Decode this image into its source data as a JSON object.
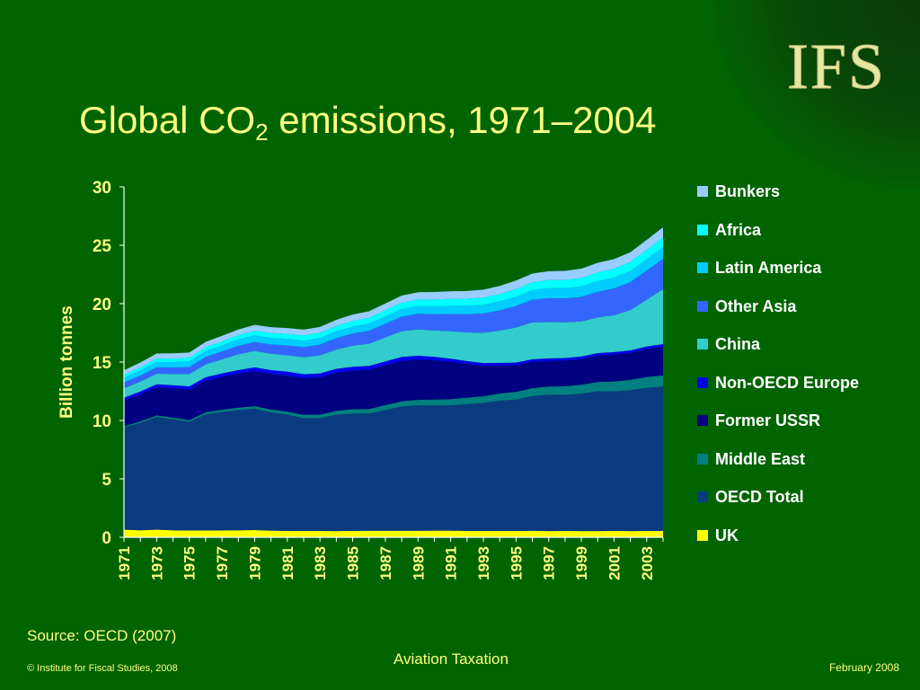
{
  "slide": {
    "logo": "IFS",
    "title_main": "Global CO",
    "title_sub": "2",
    "title_rest": " emissions, 1971–2004",
    "source": "Source: OECD (2007)",
    "footer_center": "Aviation Taxation",
    "footer_left": "© Institute for Fiscal Studies, 2008",
    "footer_right": "February 2008"
  },
  "chart_data": {
    "type": "area",
    "stacked": true,
    "title": "Global CO2 emissions, 1971–2004",
    "xlabel": "",
    "ylabel": "Billion tonnes",
    "ylim": [
      0,
      30
    ],
    "yticks": [
      0,
      5,
      10,
      15,
      20,
      25,
      30
    ],
    "x": [
      1971,
      1972,
      1973,
      1974,
      1975,
      1976,
      1977,
      1978,
      1979,
      1980,
      1981,
      1982,
      1983,
      1984,
      1985,
      1986,
      1987,
      1988,
      1989,
      1990,
      1991,
      1992,
      1993,
      1994,
      1995,
      1996,
      1997,
      1998,
      1999,
      2000,
      2001,
      2002,
      2003,
      2004
    ],
    "xtick_labels": [
      "1971",
      "1973",
      "1975",
      "1977",
      "1979",
      "1981",
      "1983",
      "1985",
      "1987",
      "1989",
      "1991",
      "1993",
      "1995",
      "1997",
      "1999",
      "2001",
      "2003"
    ],
    "grid": false,
    "legend_position": "right",
    "series": [
      {
        "name": "UK",
        "color": "#ffff00",
        "values": [
          0.65,
          0.6,
          0.65,
          0.6,
          0.58,
          0.58,
          0.59,
          0.6,
          0.62,
          0.57,
          0.55,
          0.54,
          0.54,
          0.53,
          0.55,
          0.56,
          0.56,
          0.56,
          0.56,
          0.57,
          0.57,
          0.55,
          0.55,
          0.54,
          0.54,
          0.56,
          0.53,
          0.54,
          0.53,
          0.53,
          0.55,
          0.53,
          0.54,
          0.55
        ]
      },
      {
        "name": "OECD Total",
        "color": "#0a3a80",
        "values": [
          8.75,
          9.2,
          9.65,
          9.5,
          9.3,
          9.95,
          10.15,
          10.3,
          10.38,
          10.13,
          9.95,
          9.66,
          9.66,
          9.97,
          10.05,
          10.04,
          10.34,
          10.64,
          10.74,
          10.73,
          10.73,
          10.85,
          10.95,
          11.16,
          11.26,
          11.54,
          11.67,
          11.66,
          11.77,
          11.97,
          11.95,
          12.07,
          12.26,
          12.35
        ]
      },
      {
        "name": "Middle East",
        "color": "#008080",
        "values": [
          0.1,
          0.12,
          0.13,
          0.14,
          0.15,
          0.17,
          0.18,
          0.2,
          0.22,
          0.23,
          0.25,
          0.28,
          0.3,
          0.33,
          0.36,
          0.38,
          0.41,
          0.44,
          0.46,
          0.49,
          0.52,
          0.55,
          0.58,
          0.61,
          0.64,
          0.67,
          0.7,
          0.73,
          0.76,
          0.8,
          0.84,
          0.88,
          0.92,
          0.96
        ]
      },
      {
        "name": "Former USSR",
        "color": "#000080",
        "values": [
          2.2,
          2.3,
          2.4,
          2.5,
          2.6,
          2.7,
          2.8,
          2.9,
          3.0,
          3.05,
          3.1,
          3.15,
          3.2,
          3.25,
          3.3,
          3.35,
          3.4,
          3.45,
          3.45,
          3.35,
          3.2,
          2.9,
          2.6,
          2.4,
          2.3,
          2.25,
          2.2,
          2.2,
          2.2,
          2.25,
          2.3,
          2.3,
          2.4,
          2.45
        ]
      },
      {
        "name": "Non-OECD Europe",
        "color": "#0000ee",
        "values": [
          0.25,
          0.26,
          0.27,
          0.28,
          0.29,
          0.3,
          0.31,
          0.32,
          0.33,
          0.33,
          0.33,
          0.33,
          0.33,
          0.34,
          0.34,
          0.34,
          0.35,
          0.35,
          0.34,
          0.31,
          0.27,
          0.24,
          0.23,
          0.22,
          0.22,
          0.22,
          0.22,
          0.22,
          0.22,
          0.22,
          0.22,
          0.22,
          0.22,
          0.23
        ]
      },
      {
        "name": "China",
        "color": "#33cccc",
        "values": [
          0.8,
          0.85,
          0.9,
          0.95,
          1.05,
          1.1,
          1.2,
          1.35,
          1.4,
          1.4,
          1.4,
          1.45,
          1.55,
          1.65,
          1.8,
          1.9,
          2.05,
          2.2,
          2.25,
          2.25,
          2.35,
          2.45,
          2.6,
          2.75,
          3.0,
          3.15,
          3.1,
          3.05,
          3.0,
          3.05,
          3.15,
          3.45,
          4.0,
          4.7
        ]
      },
      {
        "name": "Other Asia",
        "color": "#3366ff",
        "values": [
          0.5,
          0.52,
          0.55,
          0.57,
          0.6,
          0.64,
          0.68,
          0.72,
          0.77,
          0.8,
          0.84,
          0.87,
          0.92,
          0.98,
          1.04,
          1.1,
          1.17,
          1.25,
          1.33,
          1.4,
          1.48,
          1.56,
          1.65,
          1.74,
          1.85,
          1.95,
          2.05,
          2.05,
          2.1,
          2.2,
          2.3,
          2.4,
          2.5,
          2.6
        ]
      },
      {
        "name": "Latin America",
        "color": "#00ccff",
        "values": [
          0.4,
          0.42,
          0.45,
          0.46,
          0.48,
          0.5,
          0.52,
          0.55,
          0.57,
          0.58,
          0.57,
          0.56,
          0.56,
          0.58,
          0.6,
          0.62,
          0.64,
          0.66,
          0.67,
          0.68,
          0.7,
          0.72,
          0.74,
          0.77,
          0.8,
          0.83,
          0.86,
          0.88,
          0.9,
          0.92,
          0.93,
          0.95,
          0.97,
          1.0
        ]
      },
      {
        "name": "Africa",
        "color": "#00ffff",
        "values": [
          0.25,
          0.27,
          0.29,
          0.3,
          0.32,
          0.33,
          0.35,
          0.37,
          0.39,
          0.4,
          0.42,
          0.44,
          0.45,
          0.47,
          0.49,
          0.5,
          0.52,
          0.54,
          0.56,
          0.58,
          0.59,
          0.6,
          0.62,
          0.63,
          0.65,
          0.67,
          0.69,
          0.7,
          0.72,
          0.74,
          0.76,
          0.78,
          0.81,
          0.84
        ]
      },
      {
        "name": "Bunkers",
        "color": "#99ccff",
        "values": [
          0.4,
          0.42,
          0.44,
          0.45,
          0.45,
          0.46,
          0.47,
          0.48,
          0.5,
          0.5,
          0.5,
          0.5,
          0.5,
          0.52,
          0.54,
          0.56,
          0.58,
          0.6,
          0.62,
          0.64,
          0.65,
          0.67,
          0.68,
          0.7,
          0.72,
          0.74,
          0.76,
          0.78,
          0.8,
          0.82,
          0.82,
          0.82,
          0.84,
          0.86
        ]
      }
    ]
  }
}
